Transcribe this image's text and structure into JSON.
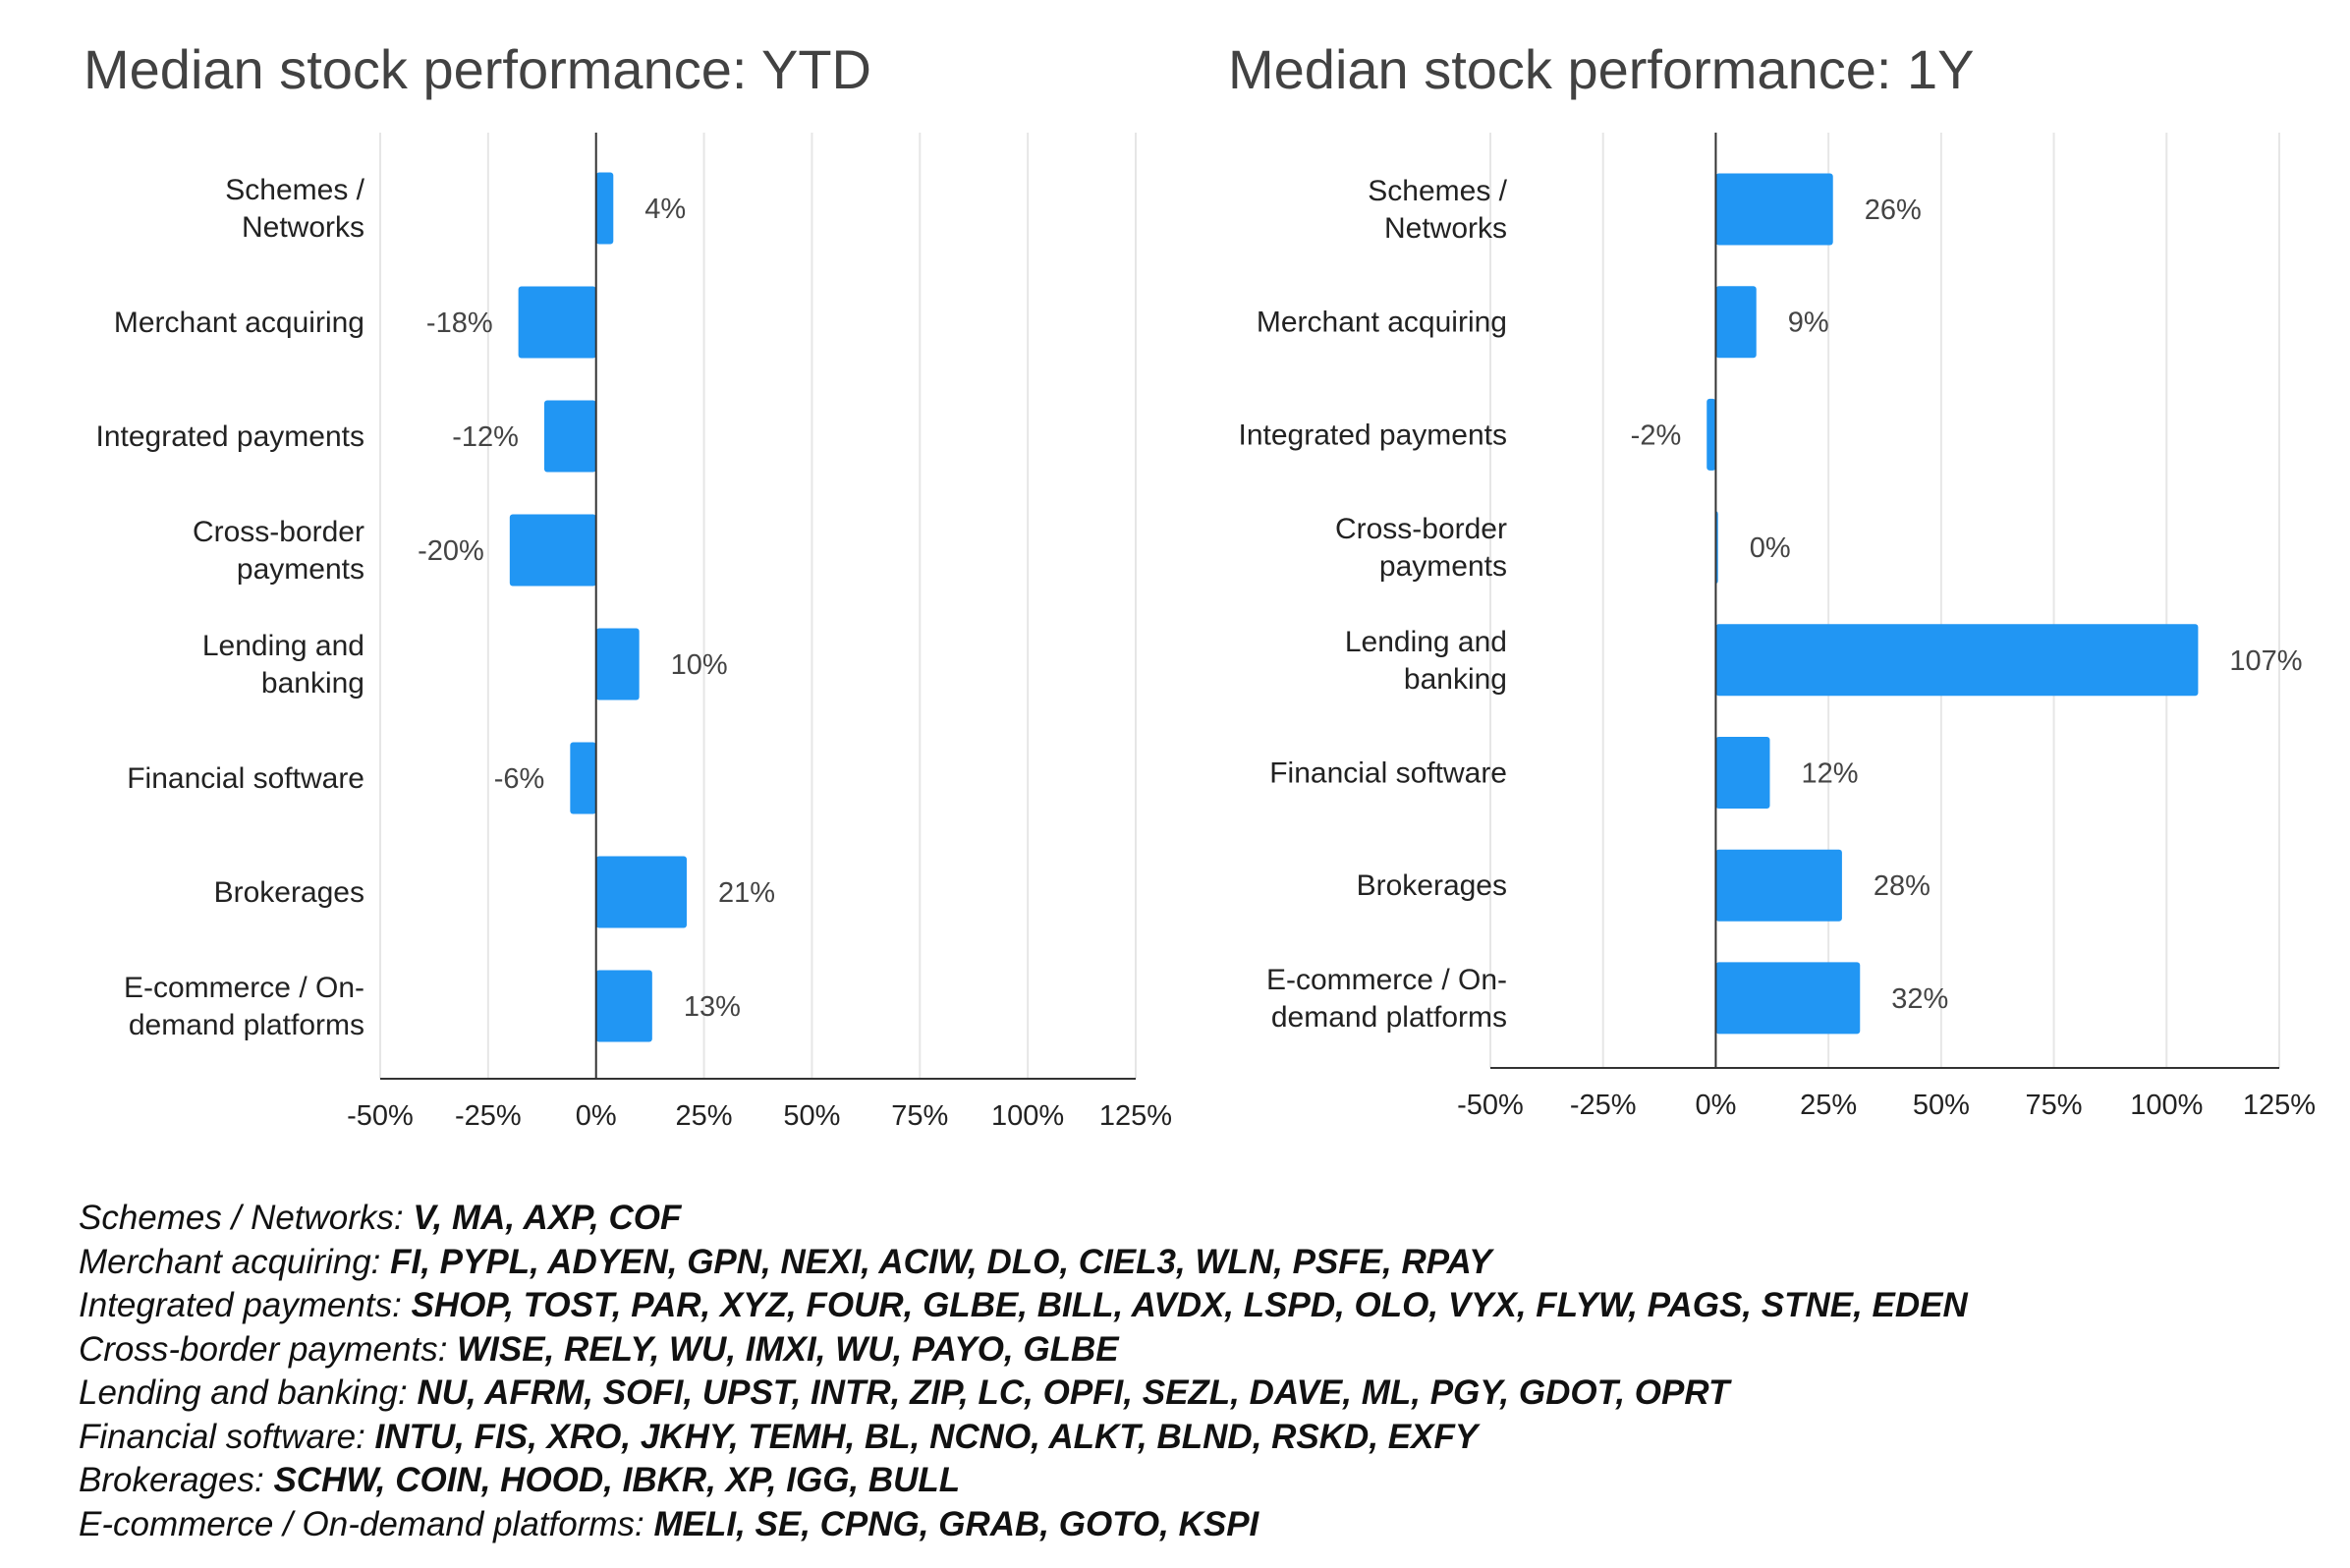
{
  "chart_data": [
    {
      "type": "bar",
      "orientation": "horizontal",
      "title": "Median stock performance: YTD",
      "categories": [
        [
          "Schemes /",
          "Networks"
        ],
        [
          "Merchant acquiring"
        ],
        [
          "Integrated payments"
        ],
        [
          "Cross-border",
          "payments"
        ],
        [
          "Lending and",
          "banking"
        ],
        [
          "Financial software"
        ],
        [
          "Brokerages"
        ],
        [
          "E-commerce / On-",
          "demand platforms"
        ]
      ],
      "values": [
        4,
        -18,
        -12,
        -20,
        10,
        -6,
        21,
        13
      ],
      "value_labels": [
        "4%",
        "-18%",
        "-12%",
        "-20%",
        "10%",
        "-6%",
        "21%",
        "13%"
      ],
      "xlim": [
        -50,
        125
      ],
      "ticks": [
        -50,
        -25,
        0,
        25,
        50,
        75,
        100,
        125
      ],
      "tick_labels": [
        "-50%",
        "-25%",
        "0%",
        "25%",
        "50%",
        "75%",
        "100%",
        "125%"
      ],
      "grid": true,
      "bar_color": "#2196f3"
    },
    {
      "type": "bar",
      "orientation": "horizontal",
      "title": "Median stock performance: 1Y",
      "categories": [
        [
          "Schemes /",
          "Networks"
        ],
        [
          "Merchant acquiring"
        ],
        [
          "Integrated payments"
        ],
        [
          "Cross-border",
          "payments"
        ],
        [
          "Lending and",
          "banking"
        ],
        [
          "Financial software"
        ],
        [
          "Brokerages"
        ],
        [
          "E-commerce / On-",
          "demand platforms"
        ]
      ],
      "values": [
        26,
        9,
        -2,
        0.5,
        107,
        12,
        28,
        32
      ],
      "value_labels": [
        "26%",
        "9%",
        "-2%",
        "0%",
        "107%",
        "12%",
        "28%",
        "32%"
      ],
      "xlim": [
        -50,
        125
      ],
      "ticks": [
        -50,
        -25,
        0,
        25,
        50,
        75,
        100,
        125
      ],
      "tick_labels": [
        "-50%",
        "-25%",
        "0%",
        "25%",
        "50%",
        "75%",
        "100%",
        "125%"
      ],
      "grid": true,
      "bar_color": "#2196f3"
    }
  ],
  "legend": [
    {
      "category": "Schemes / Networks:",
      "tickers": "V, MA, AXP, COF"
    },
    {
      "category": "Merchant acquiring:",
      "tickers": "FI, PYPL, ADYEN, GPN, NEXI, ACIW, DLO, CIEL3, WLN, PSFE, RPAY"
    },
    {
      "category": "Integrated payments:",
      "tickers": "SHOP, TOST, PAR, XYZ, FOUR, GLBE, BILL, AVDX, LSPD, OLO, VYX, FLYW, PAGS, STNE, EDEN"
    },
    {
      "category": "Cross-border payments:",
      "tickers": "WISE, RELY, WU, IMXI, WU, PAYO, GLBE"
    },
    {
      "category": "Lending and banking:",
      "tickers": "NU, AFRM, SOFI, UPST, INTR, ZIP, LC, OPFI, SEZL, DAVE, ML, PGY, GDOT, OPRT"
    },
    {
      "category": "Financial software:",
      "tickers": "INTU, FIS, XRO, JKHY, TEMH, BL, NCNO, ALKT, BLND, RSKD, EXFY"
    },
    {
      "category": "Brokerages:",
      "tickers": "SCHW, COIN, HOOD, IBKR, XP, IGG, BULL"
    },
    {
      "category": "E-commerce / On-demand platforms:",
      "tickers": "MELI, SE, CPNG, GRAB, GOTO, KSPI"
    }
  ]
}
